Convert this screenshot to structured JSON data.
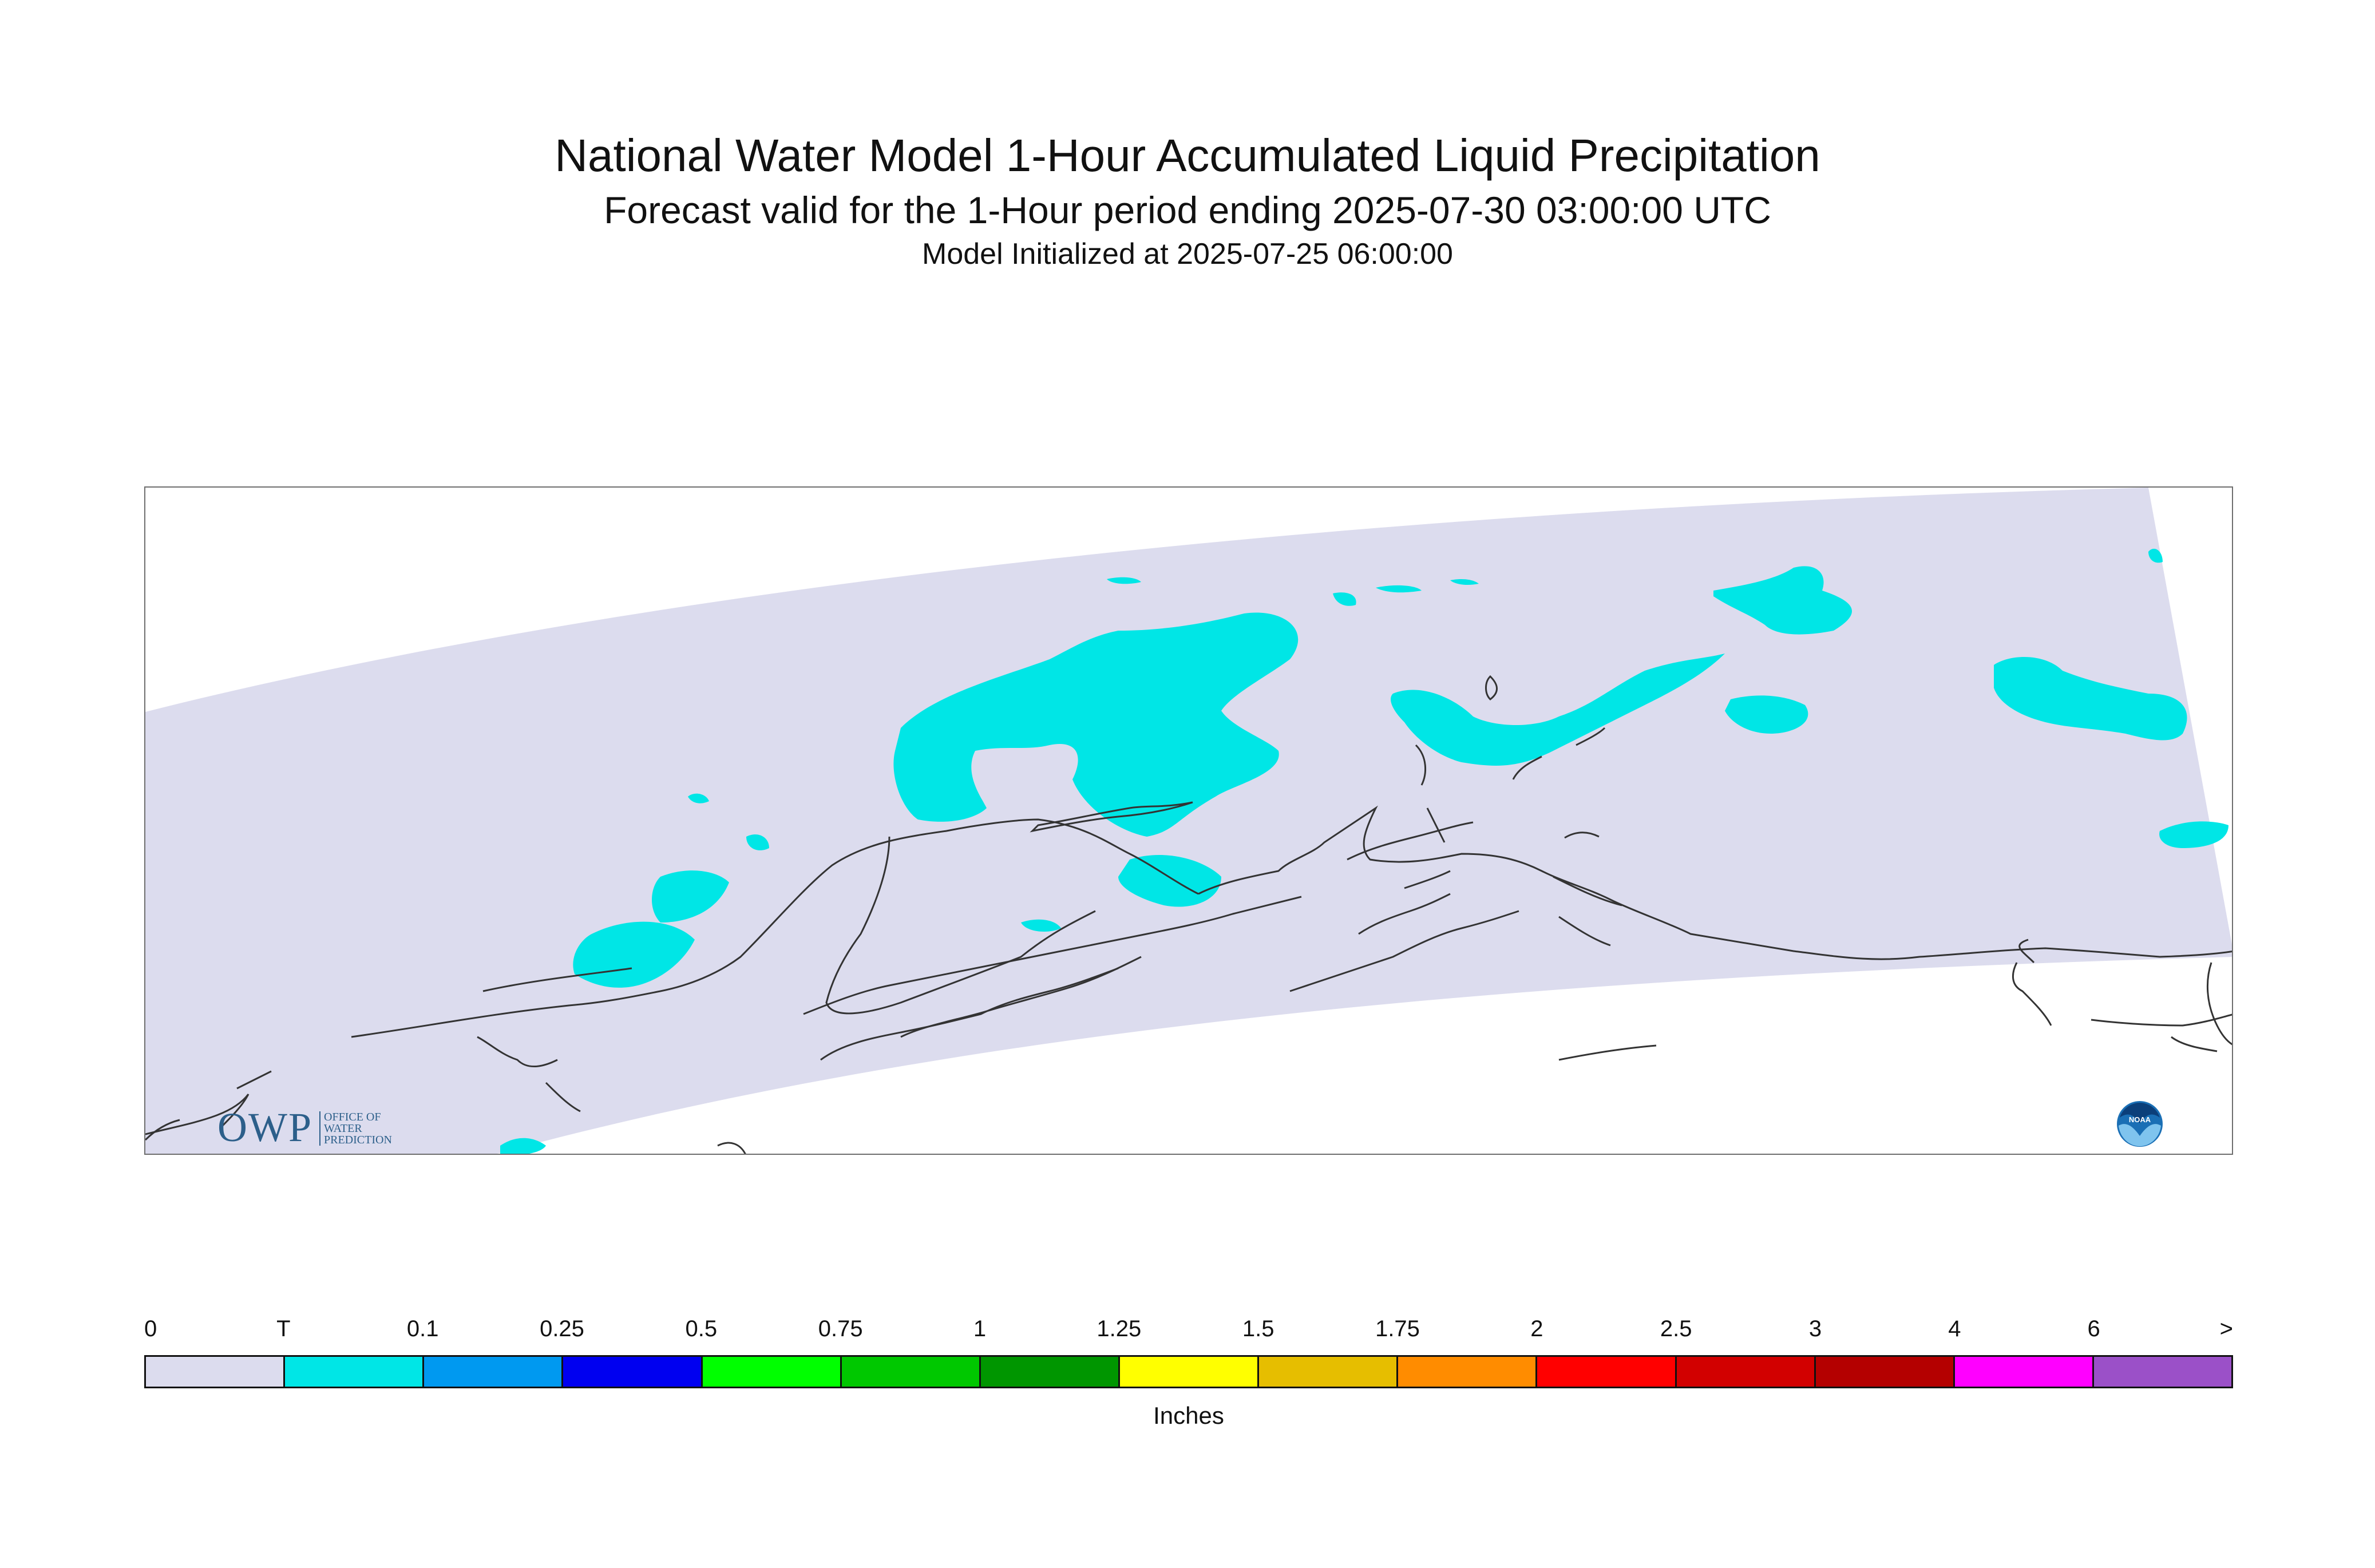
{
  "title": "National Water Model 1-Hour Accumulated Liquid Precipitation",
  "subtitle": "Forecast valid for the 1-Hour period ending 2025-07-30 03:00:00 UTC",
  "init_line": "Model Initialized at 2025-07-25 06:00:00",
  "map": {
    "domain_fill_color": "#dcdcee",
    "precip_trace_color": "#00e6e6",
    "coastline_color": "#333333"
  },
  "logos": {
    "owp_text": "OWP",
    "owp_sub": [
      "OFFICE OF",
      "WATER",
      "PREDICTION"
    ],
    "noaa_text": "NOAA"
  },
  "legend": {
    "tick_labels": [
      "0",
      "T",
      "0.1",
      "0.25",
      "0.5",
      "0.75",
      "1",
      "1.25",
      "1.5",
      "1.75",
      "2",
      "2.5",
      "3",
      "4",
      "6",
      ">"
    ],
    "colors": [
      "#dcdcee",
      "#00e6e6",
      "#0099f0",
      "#0000f0",
      "#00ff00",
      "#00c800",
      "#009600",
      "#ffff00",
      "#e6be00",
      "#ff8c00",
      "#ff0000",
      "#d20000",
      "#b40000",
      "#ff00ff",
      "#9b50c8"
    ],
    "units": "Inches"
  }
}
